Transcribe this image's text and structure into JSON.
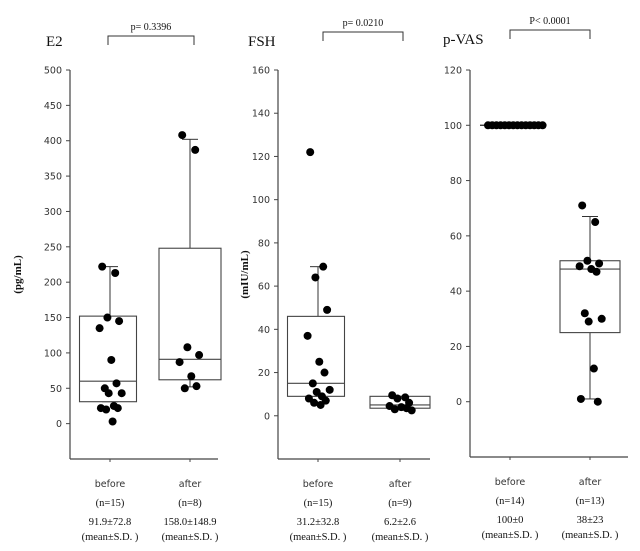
{
  "chart_data": [
    {
      "type": "box",
      "title": "E2",
      "ylabel": "(pg/mL)",
      "ylim": [
        -50,
        500
      ],
      "yticks": [
        0,
        50,
        100,
        150,
        200,
        250,
        300,
        350,
        400,
        450,
        500
      ],
      "comparison": "p= 0.3396",
      "groups": [
        {
          "label": "before",
          "n": "(n=15)",
          "stat": "91.9±72.8",
          "stat_note": "(mean±S.D. )",
          "box": {
            "q1": 31,
            "median": 60,
            "q3": 152,
            "whisker_low": 31,
            "whisker_high": 222
          },
          "points": [
            222,
            213,
            150,
            145,
            135,
            90,
            57,
            50,
            43,
            43,
            25,
            22,
            22,
            20,
            3
          ]
        },
        {
          "label": "after",
          "n": "(n=8)",
          "stat": "158.0±148.9",
          "stat_note": "(mean±S.D. )",
          "box": {
            "q1": 62,
            "median": 91,
            "q3": 248,
            "whisker_low": 52,
            "whisker_high": 402
          },
          "points": [
            408,
            387,
            108,
            97,
            87,
            67,
            53,
            50
          ]
        }
      ]
    },
    {
      "type": "box",
      "title": "FSH",
      "ylabel": "(mIU/mL)",
      "ylim": [
        -20,
        160
      ],
      "yticks": [
        0,
        20,
        40,
        60,
        80,
        100,
        120,
        140,
        160
      ],
      "ytick_labels": [
        "0",
        "20",
        "40",
        "60",
        "80",
        "100",
        "120",
        "140",
        "160"
      ],
      "comparison": "p= 0.0210",
      "groups": [
        {
          "label": "before",
          "n": "(n=15)",
          "stat": "31.2±32.8",
          "stat_note": "(mean±S.D. )",
          "box": {
            "q1": 9,
            "median": 15,
            "q3": 46,
            "whisker_low": 9,
            "whisker_high": 69
          },
          "points": [
            122,
            69,
            64,
            49,
            37,
            25,
            20,
            15,
            12,
            11,
            9,
            8,
            7,
            6,
            5
          ]
        },
        {
          "label": "after",
          "n": "(n=9)",
          "stat": "6.2±2.6",
          "stat_note": "(mean±S.D. )",
          "box": {
            "q1": 3.5,
            "median": 5,
            "q3": 9,
            "whisker_low": 3.5,
            "whisker_high": 9
          },
          "points": [
            9.5,
            8.5,
            8,
            6,
            4.5,
            4,
            3.5,
            3,
            2.5
          ]
        }
      ]
    },
    {
      "type": "box",
      "title": "p-VAS",
      "ylabel": "",
      "ylim": [
        -20,
        120
      ],
      "yticks": [
        0,
        20,
        40,
        60,
        80,
        100,
        120
      ],
      "ytick_labels": [
        "0",
        "20",
        "40",
        "60",
        "80",
        "100",
        "120"
      ],
      "comparison": "P< 0.0001",
      "groups": [
        {
          "label": "before",
          "n": "(n=14)",
          "stat": "100±0",
          "stat_note": "(mean±S.D. )",
          "box": {
            "q1": 100,
            "median": 100,
            "q3": 100,
            "whisker_low": 100,
            "whisker_high": 100
          },
          "points": [
            100,
            100,
            100,
            100,
            100,
            100,
            100,
            100,
            100,
            100,
            100,
            100,
            100,
            100
          ]
        },
        {
          "label": "after",
          "n": "(n=13)",
          "stat": "38±23",
          "stat_note": "(mean±S.D. )",
          "box": {
            "q1": 25,
            "median": 48,
            "q3": 51,
            "whisker_low": 1,
            "whisker_high": 67
          },
          "points": [
            71,
            65,
            51,
            50,
            49,
            48,
            47,
            32,
            30,
            29,
            12,
            1,
            0
          ]
        }
      ]
    }
  ]
}
